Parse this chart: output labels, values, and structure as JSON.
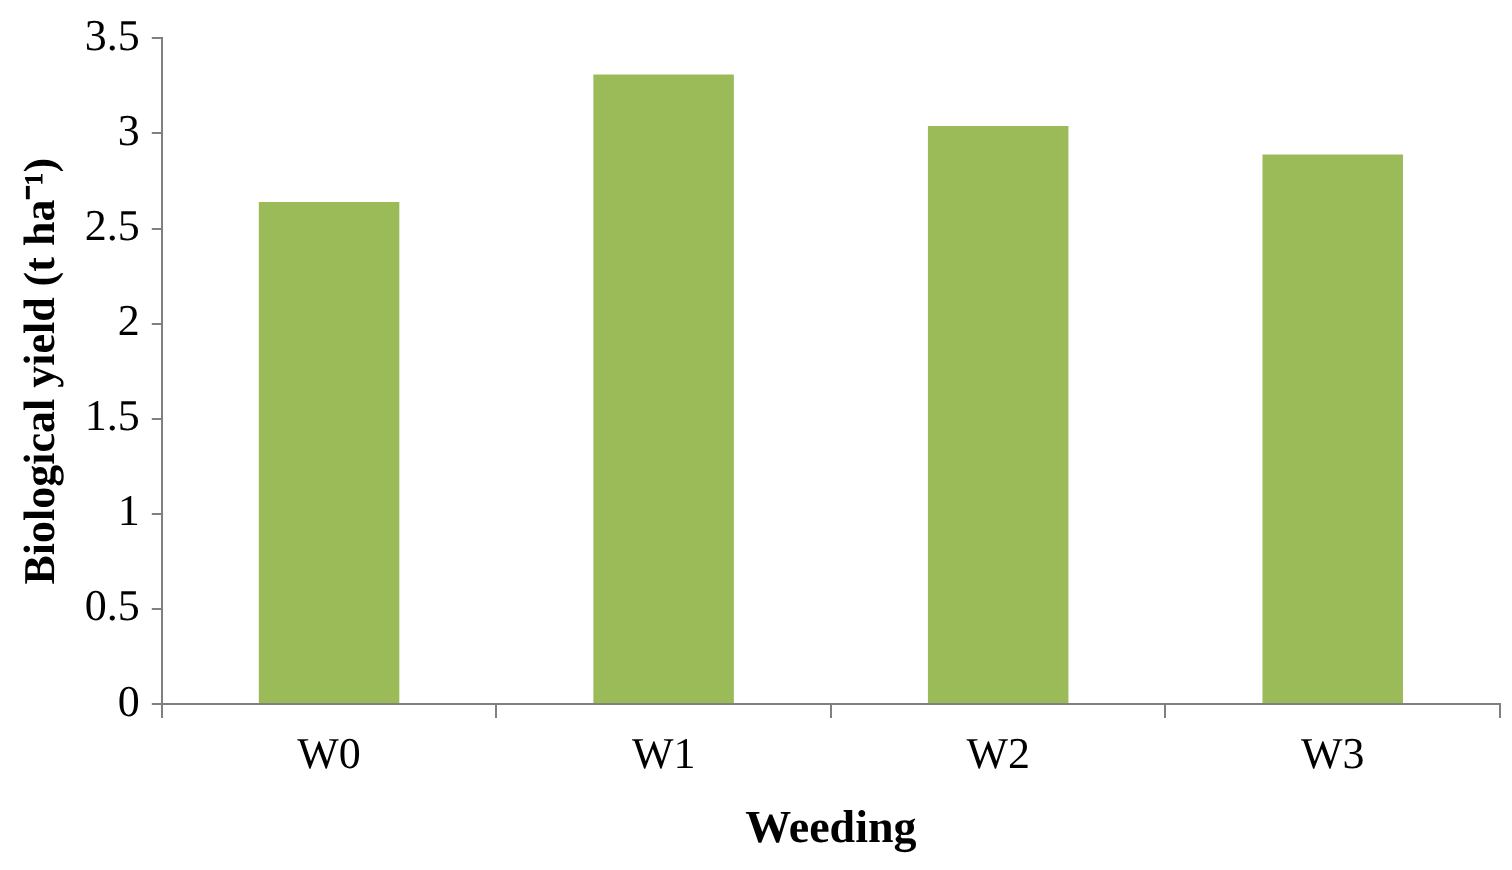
{
  "chart_data": {
    "type": "bar",
    "xlabel": "Weeding",
    "ylabel": "Biological yield (t ha⁻¹)",
    "categories": [
      "W0",
      "W1",
      "W2",
      "W3"
    ],
    "values": [
      2.64,
      3.31,
      3.04,
      2.89
    ],
    "color": "#9bbb59",
    "ylim": [
      0,
      3.5
    ],
    "yticks": [
      0,
      0.5,
      1,
      1.5,
      2,
      2.5,
      3,
      3.5
    ],
    "grid": false,
    "legend": false
  }
}
